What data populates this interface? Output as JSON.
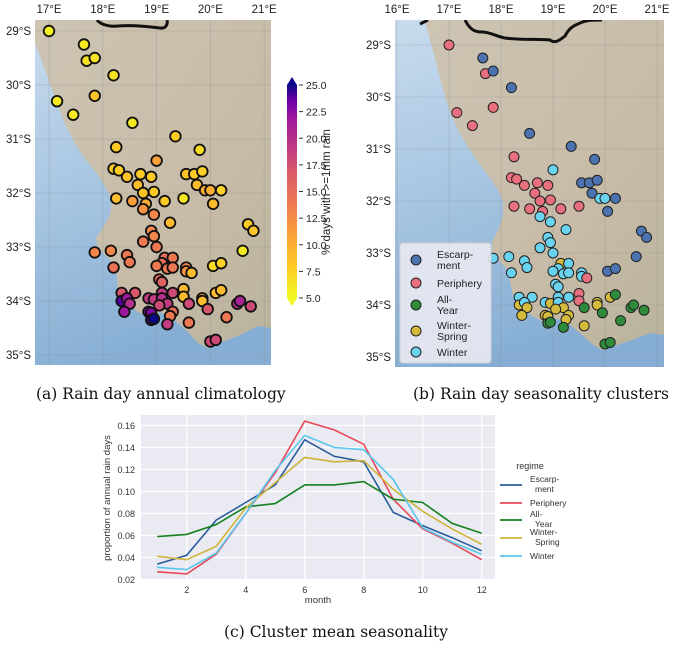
{
  "captions": {
    "a": "(a) Rain day annual climatology",
    "b": "(b) Rain day seasonality clusters",
    "c": "(c) Cluster mean seasonality"
  },
  "maps": {
    "lon_ticks_a": [
      "17°E",
      "18°E",
      "19°E",
      "20°E",
      "21°E"
    ],
    "lon_ticks_b": [
      "16°E",
      "17°E",
      "18°E",
      "19°E",
      "20°E",
      "21°E"
    ],
    "lat_ticks": [
      "29°S",
      "30°S",
      "31°S",
      "32°S",
      "33°S",
      "34°S",
      "35°S"
    ],
    "colorbar": {
      "label": "% days with >=1mm rain",
      "ticks": [
        "25.0",
        "22.5",
        "20.0",
        "17.5",
        "15.0",
        "12.5",
        "10.0",
        "7.5",
        "5.0"
      ],
      "range": [
        5,
        25
      ]
    },
    "cluster_legend": [
      {
        "label1": "Escarp-",
        "label2": "ment",
        "color": "#4c72b0"
      },
      {
        "label1": "Periphery",
        "label2": "",
        "color": "#e8707e"
      },
      {
        "label1": "All-",
        "label2": "Year",
        "color": "#2e8b3a"
      },
      {
        "label1": "Winter-",
        "label2": "Spring",
        "color": "#d4bb3c"
      },
      {
        "label1": "Winter",
        "label2": "",
        "color": "#6ad3ef"
      }
    ],
    "stations": [
      {
        "lon": 17.0,
        "lat": 29.0,
        "v": 5.5,
        "c": 1
      },
      {
        "lon": 17.65,
        "lat": 29.25,
        "v": 6,
        "c": 0
      },
      {
        "lon": 17.7,
        "lat": 29.55,
        "v": 6.5,
        "c": 1
      },
      {
        "lon": 17.85,
        "lat": 29.5,
        "v": 6.5,
        "c": 0
      },
      {
        "lon": 18.2,
        "lat": 29.82,
        "v": 6.5,
        "c": 0
      },
      {
        "lon": 17.85,
        "lat": 30.2,
        "v": 8.5,
        "c": 1
      },
      {
        "lon": 17.15,
        "lat": 30.3,
        "v": 6,
        "c": 1
      },
      {
        "lon": 17.45,
        "lat": 30.55,
        "v": 6,
        "c": 1
      },
      {
        "lon": 18.55,
        "lat": 30.7,
        "v": 6,
        "c": 0
      },
      {
        "lon": 19.35,
        "lat": 30.95,
        "v": 8,
        "c": 0
      },
      {
        "lon": 18.25,
        "lat": 31.15,
        "v": 8,
        "c": 1
      },
      {
        "lon": 19.8,
        "lat": 31.2,
        "v": 7,
        "c": 0
      },
      {
        "lon": 19.0,
        "lat": 31.4,
        "v": 11,
        "c": 4
      },
      {
        "lon": 18.2,
        "lat": 31.55,
        "v": 8,
        "c": 1
      },
      {
        "lon": 18.3,
        "lat": 31.58,
        "v": 8,
        "c": 1
      },
      {
        "lon": 18.45,
        "lat": 31.7,
        "v": 8.5,
        "c": 1
      },
      {
        "lon": 18.7,
        "lat": 31.65,
        "v": 8,
        "c": 1
      },
      {
        "lon": 18.9,
        "lat": 31.7,
        "v": 8,
        "c": 1
      },
      {
        "lon": 19.55,
        "lat": 31.65,
        "v": 8.5,
        "c": 0
      },
      {
        "lon": 19.7,
        "lat": 31.65,
        "v": 8,
        "c": 0
      },
      {
        "lon": 19.85,
        "lat": 31.6,
        "v": 7.5,
        "c": 0
      },
      {
        "lon": 18.65,
        "lat": 31.85,
        "v": 9,
        "c": 1
      },
      {
        "lon": 19.75,
        "lat": 31.85,
        "v": 9,
        "c": 0
      },
      {
        "lon": 18.75,
        "lat": 32.0,
        "v": 8.5,
        "c": 1
      },
      {
        "lon": 18.95,
        "lat": 31.98,
        "v": 8,
        "c": 1
      },
      {
        "lon": 19.9,
        "lat": 31.95,
        "v": 10,
        "c": 4
      },
      {
        "lon": 20.0,
        "lat": 31.95,
        "v": 10,
        "c": 4
      },
      {
        "lon": 20.2,
        "lat": 31.95,
        "v": 7.5,
        "c": 0
      },
      {
        "lon": 18.25,
        "lat": 32.1,
        "v": 9,
        "c": 1
      },
      {
        "lon": 18.55,
        "lat": 32.15,
        "v": 11,
        "c": 1
      },
      {
        "lon": 18.8,
        "lat": 32.2,
        "v": 10,
        "c": 1
      },
      {
        "lon": 19.15,
        "lat": 32.15,
        "v": 8,
        "c": 1
      },
      {
        "lon": 19.5,
        "lat": 32.1,
        "v": 6,
        "c": 1
      },
      {
        "lon": 20.05,
        "lat": 32.2,
        "v": 9,
        "c": 0
      },
      {
        "lon": 18.75,
        "lat": 32.3,
        "v": 12,
        "c": 4
      },
      {
        "lon": 18.95,
        "lat": 32.4,
        "v": 13,
        "c": 4
      },
      {
        "lon": 19.25,
        "lat": 32.55,
        "v": 9,
        "c": 4
      },
      {
        "lon": 20.7,
        "lat": 32.58,
        "v": 8,
        "c": 0
      },
      {
        "lon": 20.8,
        "lat": 32.7,
        "v": 8.5,
        "c": 0
      },
      {
        "lon": 18.9,
        "lat": 32.7,
        "v": 13,
        "c": 4
      },
      {
        "lon": 18.95,
        "lat": 32.8,
        "v": 13,
        "c": 4
      },
      {
        "lon": 18.75,
        "lat": 32.9,
        "v": 14,
        "c": 4
      },
      {
        "lon": 19.0,
        "lat": 33.0,
        "v": 14,
        "c": 4
      },
      {
        "lon": 17.85,
        "lat": 33.1,
        "v": 13,
        "c": 4
      },
      {
        "lon": 18.15,
        "lat": 33.07,
        "v": 13,
        "c": 4
      },
      {
        "lon": 18.45,
        "lat": 33.15,
        "v": 14,
        "c": 4
      },
      {
        "lon": 18.5,
        "lat": 33.28,
        "v": 14,
        "c": 4
      },
      {
        "lon": 18.2,
        "lat": 33.38,
        "v": 14.5,
        "c": 4
      },
      {
        "lon": 19.15,
        "lat": 33.2,
        "v": 15,
        "c": 3
      },
      {
        "lon": 19.3,
        "lat": 33.2,
        "v": 14,
        "c": 4
      },
      {
        "lon": 19.1,
        "lat": 33.3,
        "v": 15,
        "c": 4
      },
      {
        "lon": 19.0,
        "lat": 33.35,
        "v": 14,
        "c": 4
      },
      {
        "lon": 19.2,
        "lat": 33.4,
        "v": 14,
        "c": 4
      },
      {
        "lon": 19.3,
        "lat": 33.38,
        "v": 14,
        "c": 4
      },
      {
        "lon": 19.55,
        "lat": 33.38,
        "v": 13,
        "c": 4
      },
      {
        "lon": 19.55,
        "lat": 33.45,
        "v": 12,
        "c": 4
      },
      {
        "lon": 19.65,
        "lat": 33.48,
        "v": 9,
        "c": 1
      },
      {
        "lon": 20.05,
        "lat": 33.35,
        "v": 7,
        "c": 0
      },
      {
        "lon": 20.2,
        "lat": 33.3,
        "v": 7.5,
        "c": 0
      },
      {
        "lon": 20.6,
        "lat": 33.07,
        "v": 6,
        "c": 0
      },
      {
        "lon": 19.05,
        "lat": 33.6,
        "v": 15,
        "c": 4
      },
      {
        "lon": 19.1,
        "lat": 33.65,
        "v": 16,
        "c": 4
      },
      {
        "lon": 19.5,
        "lat": 33.78,
        "v": 9,
        "c": 1
      },
      {
        "lon": 20.1,
        "lat": 33.85,
        "v": 9,
        "c": 3
      },
      {
        "lon": 20.2,
        "lat": 33.8,
        "v": 9,
        "c": 2
      },
      {
        "lon": 18.35,
        "lat": 33.85,
        "v": 17,
        "c": 4
      },
      {
        "lon": 18.6,
        "lat": 33.85,
        "v": 17,
        "c": 4
      },
      {
        "lon": 18.35,
        "lat": 34.0,
        "v": 24,
        "c": 3
      },
      {
        "lon": 18.45,
        "lat": 33.95,
        "v": 22,
        "c": 4
      },
      {
        "lon": 18.5,
        "lat": 34.05,
        "v": 20,
        "c": 3
      },
      {
        "lon": 18.85,
        "lat": 33.95,
        "v": 19,
        "c": 4
      },
      {
        "lon": 18.95,
        "lat": 33.97,
        "v": 19,
        "c": 3
      },
      {
        "lon": 19.1,
        "lat": 33.85,
        "v": 19,
        "c": 4
      },
      {
        "lon": 19.1,
        "lat": 33.95,
        "v": 20,
        "c": 4
      },
      {
        "lon": 19.3,
        "lat": 33.85,
        "v": 18,
        "c": 4
      },
      {
        "lon": 19.5,
        "lat": 33.92,
        "v": 9,
        "c": 1
      },
      {
        "lon": 19.2,
        "lat": 34.05,
        "v": 19,
        "c": 3
      },
      {
        "lon": 19.05,
        "lat": 34.08,
        "v": 18,
        "c": 3
      },
      {
        "lon": 19.85,
        "lat": 33.95,
        "v": 10,
        "c": 3
      },
      {
        "lon": 19.85,
        "lat": 34.0,
        "v": 9,
        "c": 3
      },
      {
        "lon": 19.6,
        "lat": 34.05,
        "v": 18,
        "c": 2
      },
      {
        "lon": 18.4,
        "lat": 34.2,
        "v": 22,
        "c": 3
      },
      {
        "lon": 18.85,
        "lat": 34.2,
        "v": 23,
        "c": 3
      },
      {
        "lon": 18.9,
        "lat": 34.22,
        "v": 23,
        "c": 3
      },
      {
        "lon": 18.9,
        "lat": 34.35,
        "v": 24,
        "c": 2
      },
      {
        "lon": 18.95,
        "lat": 34.33,
        "v": 25,
        "c": 2
      },
      {
        "lon": 19.3,
        "lat": 34.2,
        "v": 15,
        "c": 3
      },
      {
        "lon": 19.25,
        "lat": 34.28,
        "v": 14,
        "c": 3
      },
      {
        "lon": 19.2,
        "lat": 34.43,
        "v": 19,
        "c": 2
      },
      {
        "lon": 19.6,
        "lat": 34.4,
        "v": 14,
        "c": 3
      },
      {
        "lon": 19.95,
        "lat": 34.15,
        "v": 17,
        "c": 2
      },
      {
        "lon": 20.3,
        "lat": 34.3,
        "v": 14,
        "c": 2
      },
      {
        "lon": 20.5,
        "lat": 34.05,
        "v": 20,
        "c": 2
      },
      {
        "lon": 20.55,
        "lat": 34.0,
        "v": 21,
        "c": 2
      },
      {
        "lon": 20.75,
        "lat": 34.1,
        "v": 18,
        "c": 2
      },
      {
        "lon": 20.0,
        "lat": 34.75,
        "v": 18,
        "c": 2
      },
      {
        "lon": 20.1,
        "lat": 34.72,
        "v": 18,
        "c": 2
      }
    ]
  },
  "chart_data": {
    "type": "line",
    "title": "",
    "xlabel": "month",
    "ylabel": "proportion of annual rain days",
    "x": [
      1,
      2,
      3,
      4,
      5,
      6,
      7,
      8,
      9,
      10,
      11,
      12
    ],
    "x_ticks": [
      "2",
      "4",
      "6",
      "8",
      "10",
      "12"
    ],
    "y_ticks": [
      "0.02",
      "0.04",
      "0.06",
      "0.08",
      "0.10",
      "0.12",
      "0.14",
      "0.16"
    ],
    "xlim": [
      0.45,
      12.45
    ],
    "ylim": [
      0.0195,
      0.1695
    ],
    "grid": true,
    "legend_title": "regime",
    "legend_placement": "right",
    "series": [
      {
        "name": "Escarp-",
        "name2": "ment",
        "color": "#2a5d9c",
        "values": [
          0.034,
          0.042,
          0.074,
          0.09,
          0.106,
          0.147,
          0.132,
          0.127,
          0.081,
          0.069,
          0.058,
          0.046
        ]
      },
      {
        "name": "Periphery",
        "name2": "",
        "color": "#e8495b",
        "values": [
          0.027,
          0.025,
          0.043,
          0.08,
          0.117,
          0.164,
          0.156,
          0.143,
          0.093,
          0.066,
          0.053,
          0.038
        ]
      },
      {
        "name": "All-",
        "name2": "Year",
        "color": "#14801e",
        "values": [
          0.059,
          0.061,
          0.07,
          0.086,
          0.089,
          0.106,
          0.106,
          0.109,
          0.093,
          0.09,
          0.071,
          0.062
        ]
      },
      {
        "name": "Winter-",
        "name2": "Spring",
        "color": "#cfb43a",
        "values": [
          0.041,
          0.038,
          0.05,
          0.085,
          0.108,
          0.131,
          0.127,
          0.128,
          0.102,
          0.082,
          0.066,
          0.052
        ]
      },
      {
        "name": "Winter",
        "name2": "",
        "color": "#5bc6ec",
        "values": [
          0.031,
          0.029,
          0.044,
          0.08,
          0.119,
          0.151,
          0.14,
          0.138,
          0.111,
          0.067,
          0.054,
          0.043
        ]
      }
    ]
  }
}
